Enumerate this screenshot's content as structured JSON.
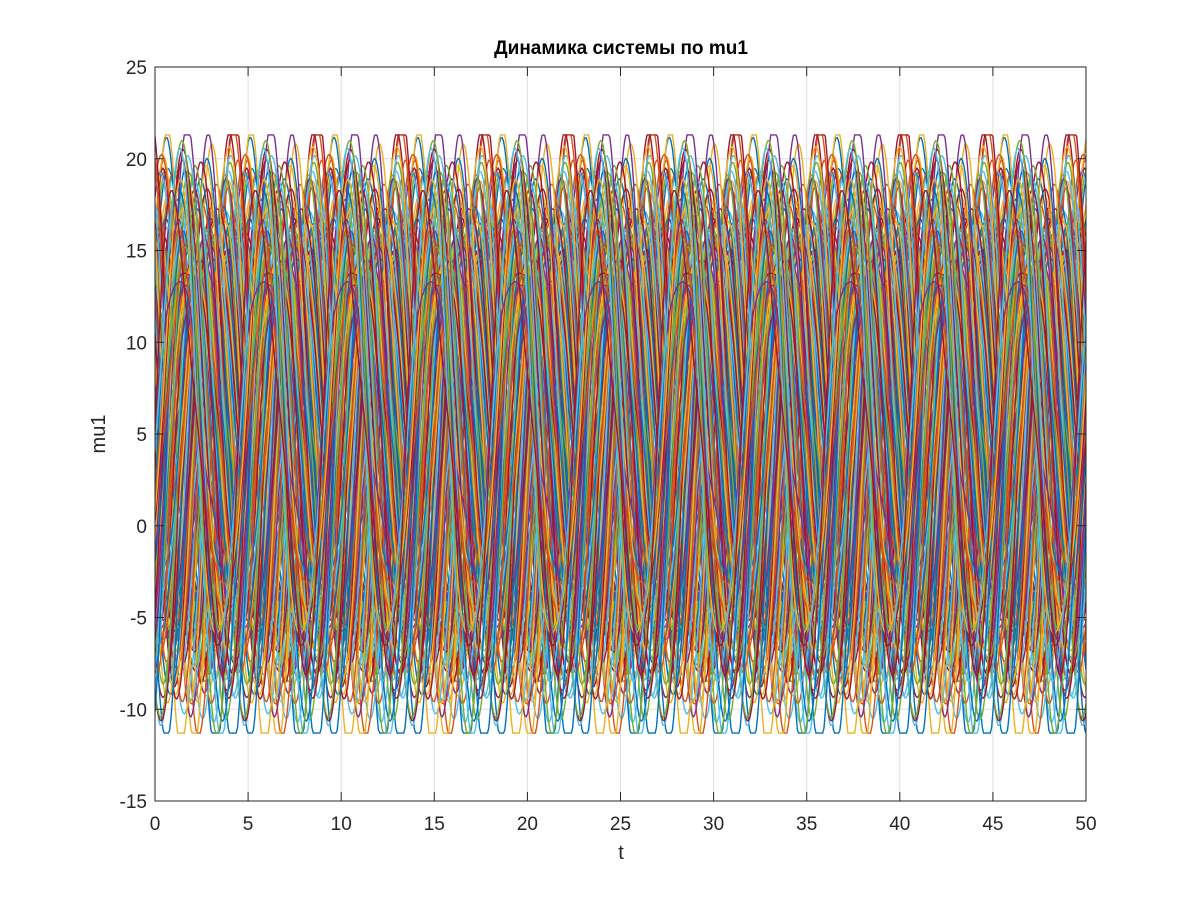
{
  "chart_data": {
    "type": "line",
    "title": "Динамика системы по mu1",
    "xlabel": "t",
    "ylabel": "mu1",
    "xlim": [
      0,
      50
    ],
    "ylim": [
      -15,
      25
    ],
    "xticks": [
      "0",
      "5",
      "10",
      "15",
      "20",
      "25",
      "30",
      "35",
      "40",
      "45",
      "50"
    ],
    "yticks": [
      "-15",
      "-10",
      "-5",
      "0",
      "5",
      "10",
      "15",
      "20",
      "25"
    ],
    "grid": true,
    "legend": "none",
    "period_approx": 4.5,
    "num_trajectories": 140,
    "value_range": [
      -11.3,
      21.3
    ],
    "colors": [
      "#0072BD",
      "#D95319",
      "#EDB120",
      "#7E2F8E",
      "#77AC30",
      "#4DBEEE",
      "#A2142F"
    ]
  }
}
